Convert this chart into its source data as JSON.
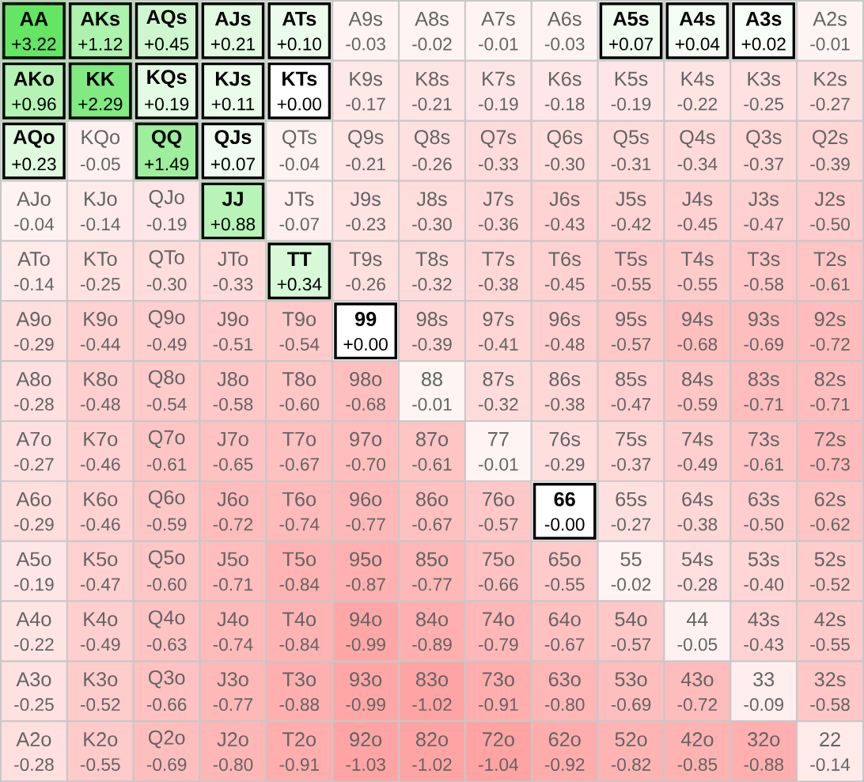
{
  "chart_data": {
    "type": "heatmap",
    "cell_labels": [
      [
        "+3.22",
        "+1.12",
        "+0.45",
        "+0.21",
        "+0.10",
        "-0.03",
        "-0.02",
        "-0.01",
        "-0.03",
        "+0.07",
        "+0.04",
        "+0.02",
        "-0.01"
      ],
      [
        "+0.96",
        "+2.29",
        "+0.19",
        "+0.11",
        "+0.00",
        "-0.17",
        "-0.21",
        "-0.19",
        "-0.18",
        "-0.19",
        "-0.22",
        "-0.25",
        "-0.27"
      ],
      [
        "+0.23",
        "-0.05",
        "+1.49",
        "+0.07",
        "-0.04",
        "-0.21",
        "-0.26",
        "-0.33",
        "-0.30",
        "-0.31",
        "-0.34",
        "-0.37",
        "-0.39"
      ],
      [
        "-0.04",
        "-0.14",
        "-0.19",
        "+0.88",
        "-0.07",
        "-0.23",
        "-0.30",
        "-0.36",
        "-0.43",
        "-0.42",
        "-0.45",
        "-0.47",
        "-0.50"
      ],
      [
        "-0.14",
        "-0.25",
        "-0.30",
        "-0.33",
        "+0.34",
        "-0.26",
        "-0.32",
        "-0.38",
        "-0.45",
        "-0.55",
        "-0.55",
        "-0.58",
        "-0.61"
      ],
      [
        "-0.29",
        "-0.44",
        "-0.49",
        "-0.51",
        "-0.54",
        "+0.00",
        "-0.39",
        "-0.41",
        "-0.48",
        "-0.57",
        "-0.68",
        "-0.69",
        "-0.72"
      ],
      [
        "-0.28",
        "-0.48",
        "-0.54",
        "-0.58",
        "-0.60",
        "-0.68",
        "-0.01",
        "-0.32",
        "-0.38",
        "-0.47",
        "-0.59",
        "-0.71",
        "-0.71"
      ],
      [
        "-0.27",
        "-0.46",
        "-0.61",
        "-0.65",
        "-0.67",
        "-0.70",
        "-0.61",
        "-0.01",
        "-0.29",
        "-0.37",
        "-0.49",
        "-0.61",
        "-0.73"
      ],
      [
        "-0.29",
        "-0.46",
        "-0.59",
        "-0.72",
        "-0.74",
        "-0.77",
        "-0.67",
        "-0.57",
        "-0.00",
        "-0.27",
        "-0.38",
        "-0.50",
        "-0.62"
      ],
      [
        "-0.19",
        "-0.47",
        "-0.60",
        "-0.71",
        "-0.84",
        "-0.87",
        "-0.77",
        "-0.66",
        "-0.55",
        "-0.02",
        "-0.28",
        "-0.40",
        "-0.52"
      ],
      [
        "-0.22",
        "-0.49",
        "-0.63",
        "-0.74",
        "-0.84",
        "-0.99",
        "-0.89",
        "-0.79",
        "-0.67",
        "-0.57",
        "-0.05",
        "-0.43",
        "-0.55"
      ],
      [
        "-0.25",
        "-0.52",
        "-0.66",
        "-0.77",
        "-0.88",
        "-0.99",
        "-1.02",
        "-0.91",
        "-0.80",
        "-0.69",
        "-0.72",
        "-0.09",
        "-0.58"
      ],
      [
        "-0.28",
        "-0.55",
        "-0.69",
        "-0.80",
        "-0.91",
        "-1.03",
        "-1.02",
        "-1.04",
        "-0.92",
        "-0.82",
        "-0.85",
        "-0.88",
        "-0.14"
      ]
    ],
    "categories": [
      null,
      null,
      null,
      null,
      null,
      null,
      null,
      null,
      null,
      null,
      null,
      null,
      null
    ],
    "y_categories": [
      null,
      null,
      null,
      null,
      null,
      null,
      null,
      null,
      null,
      null,
      null,
      null,
      null
    ],
    "cells": [
      [
        3.22,
        1.12,
        0.45,
        0.21,
        0.1,
        -0.03,
        -0.02,
        -0.01,
        -0.03,
        0.07,
        0.04,
        0.02,
        -0.01
      ],
      [
        0.96,
        2.29,
        0.19,
        0.11,
        0.0,
        -0.17,
        -0.21,
        -0.19,
        -0.18,
        -0.19,
        -0.22,
        -0.25,
        -0.27
      ],
      [
        0.23,
        -0.05,
        1.49,
        0.07,
        -0.04,
        -0.21,
        -0.26,
        -0.33,
        -0.3,
        -0.31,
        -0.34,
        -0.37,
        -0.39
      ],
      [
        -0.04,
        -0.14,
        -0.19,
        0.88,
        -0.07,
        -0.23,
        -0.3,
        -0.36,
        -0.43,
        -0.42,
        -0.45,
        -0.47,
        -0.5
      ],
      [
        -0.14,
        -0.25,
        -0.3,
        -0.33,
        0.34,
        -0.26,
        -0.32,
        -0.38,
        -0.45,
        -0.55,
        -0.55,
        -0.58,
        -0.61
      ],
      [
        -0.29,
        -0.44,
        -0.49,
        -0.51,
        -0.54,
        0.0,
        -0.39,
        -0.41,
        -0.48,
        -0.57,
        -0.68,
        -0.69,
        -0.72
      ],
      [
        -0.28,
        -0.48,
        -0.54,
        -0.58,
        -0.6,
        -0.68,
        -0.01,
        -0.32,
        -0.38,
        -0.47,
        -0.59,
        -0.71,
        -0.71
      ],
      [
        -0.27,
        -0.46,
        -0.61,
        -0.65,
        -0.67,
        -0.7,
        -0.61,
        -0.01,
        -0.29,
        -0.37,
        -0.49,
        -0.61,
        -0.73
      ],
      [
        -0.29,
        -0.46,
        -0.59,
        -0.72,
        -0.74,
        -0.77,
        -0.67,
        -0.57,
        -0.0,
        -0.27,
        -0.38,
        -0.5,
        -0.62
      ],
      [
        -0.19,
        -0.47,
        -0.6,
        -0.71,
        -0.84,
        -0.87,
        -0.77,
        -0.66,
        -0.55,
        -0.02,
        -0.28,
        -0.4,
        -0.52
      ],
      [
        -0.22,
        -0.49,
        -0.63,
        -0.74,
        -0.84,
        -0.99,
        -0.89,
        -0.79,
        -0.67,
        -0.57,
        -0.05,
        -0.43,
        -0.55
      ],
      [
        -0.25,
        -0.52,
        -0.66,
        -0.77,
        -0.88,
        -0.99,
        -1.02,
        -0.91,
        -0.8,
        -0.69,
        -0.72,
        -0.09,
        -0.58
      ],
      [
        -0.28,
        -0.55,
        -0.69,
        -0.8,
        -0.91,
        -1.03,
        -1.02,
        -1.04,
        -0.92,
        -0.82,
        -0.85,
        -0.88,
        -0.14
      ]
    ],
    "annotations": [
      "AA",
      "AKs",
      "AQs",
      "AJs",
      "ATs",
      "A9s",
      "A8s",
      "A7s",
      "A6s",
      "A5s",
      "A4s",
      "A3s",
      "A2s",
      "AKo",
      "KK",
      "KQs",
      "KJs",
      "KTs",
      "K9s",
      "K8s",
      "K7s",
      "K6s",
      "K5s",
      "K4s",
      "K3s",
      "K2s",
      "AQo",
      "KQo",
      "QQ",
      "QJs",
      "QTs",
      "Q9s",
      "Q8s",
      "Q7s",
      "Q6s",
      "Q5s",
      "Q4s",
      "Q3s",
      "Q2s",
      "AJo",
      "KJo",
      "QJo",
      "JJ",
      "JTs",
      "J9s",
      "J8s",
      "J7s",
      "J6s",
      "J5s",
      "J4s",
      "J3s",
      "J2s",
      "ATo",
      "KTo",
      "QTo",
      "JTo",
      "TT",
      "T9s",
      "T8s",
      "T7s",
      "T6s",
      "T5s",
      "T4s",
      "T3s",
      "T2s",
      "A9o",
      "K9o",
      "Q9o",
      "J9o",
      "T9o",
      "99",
      "98s",
      "97s",
      "96s",
      "95s",
      "94s",
      "93s",
      "92s",
      "A8o",
      "K8o",
      "Q8o",
      "J8o",
      "T8o",
      "98o",
      "88",
      "87s",
      "86s",
      "85s",
      "84s",
      "83s",
      "82s",
      "A7o",
      "K7o",
      "Q7o",
      "J7o",
      "T7o",
      "97o",
      "87o",
      "77",
      "76s",
      "75s",
      "74s",
      "73s",
      "72s",
      "A6o",
      "K6o",
      "Q6o",
      "J6o",
      "T6o",
      "96o",
      "86o",
      "76o",
      "66",
      "65s",
      "64s",
      "63s",
      "62s",
      "A5o",
      "K5o",
      "Q5o",
      "J5o",
      "T5o",
      "95o",
      "85o",
      "75o",
      "65o",
      "55",
      "54s",
      "53s",
      "52s",
      "A4o",
      "K4o",
      "Q4o",
      "J4o",
      "T4o",
      "94o",
      "84o",
      "74o",
      "64o",
      "54o",
      "44",
      "43s",
      "42s",
      "A3o",
      "K3o",
      "Q3o",
      "J3o",
      "T3o",
      "93o",
      "83o",
      "73o",
      "63o",
      "53o",
      "43o",
      "33",
      "32s",
      "A2o",
      "K2o",
      "Q2o",
      "J2o",
      "T2o",
      "92o",
      "82o",
      "72o",
      "62o",
      "52o",
      "42o",
      "32o",
      "22"
    ]
  }
}
